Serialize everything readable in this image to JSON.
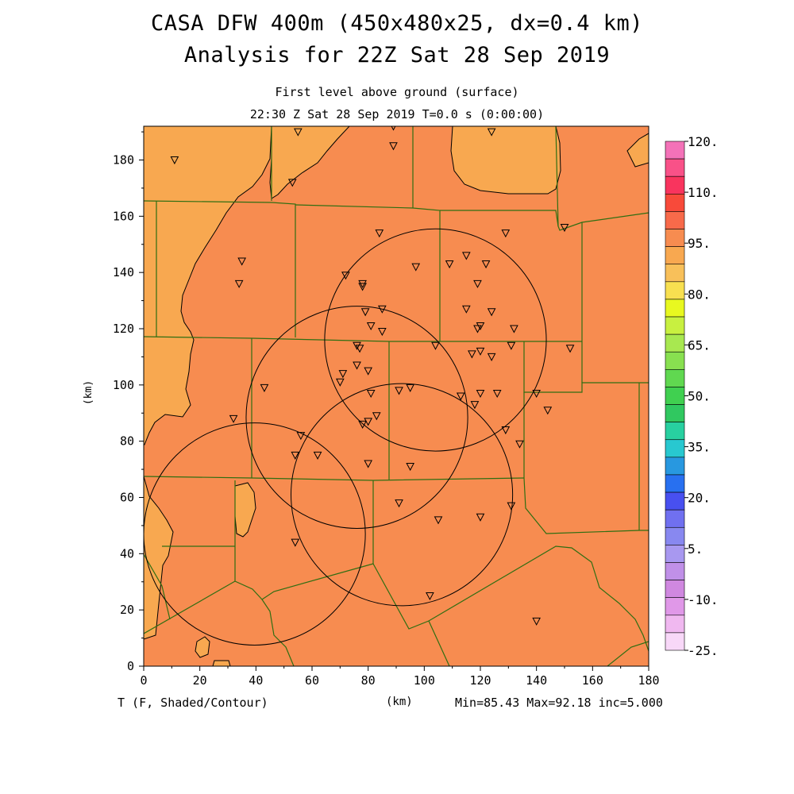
{
  "header": {
    "title_line1": "CASA DFW 400m (450x480x25, dx=0.4 km)",
    "title_line2": "Analysis for 22Z Sat 28 Sep 2019",
    "subtitle_line1": "First level above ground (surface)",
    "subtitle_line2": "22:30 Z Sat 28 Sep 2019   T=0.0 s (0:00:00)"
  },
  "footer": {
    "variable": "T (F, Shaded/Contour)",
    "x_unit": "(km)",
    "stats": "Min=85.43 Max=92.18 inc=5.000"
  },
  "axes": {
    "y_label": "(km)",
    "x_ticks": [
      "0",
      "20",
      "40",
      "60",
      "80",
      "100",
      "120",
      "140",
      "160",
      "180"
    ],
    "y_ticks": [
      "0",
      "20",
      "40",
      "60",
      "80",
      "100",
      "120",
      "140",
      "160",
      "180"
    ],
    "x_range_km": [
      0,
      180
    ],
    "y_range_km": [
      0,
      192
    ]
  },
  "colors": {
    "field_85_90": "#f78c50",
    "field_80_85": "#f8a850",
    "boundary": "#2f6e12"
  },
  "colorbar": {
    "labels": [
      "120.",
      "110.",
      "95.",
      "80.",
      "65.",
      "50.",
      "35.",
      "20.",
      "5.",
      "-10.",
      "-25."
    ],
    "colors": [
      "#f472b8",
      "#f95188",
      "#f9345e",
      "#f84a3a",
      "#f86a4a",
      "#f78c50",
      "#f8a850",
      "#f8c05a",
      "#f8e050",
      "#e8f820",
      "#c8f040",
      "#a8e850",
      "#88e050",
      "#60d850",
      "#40d050",
      "#30c860",
      "#28d0a0",
      "#28c8d0",
      "#2898e0",
      "#2870f0",
      "#4850f0",
      "#7070f0",
      "#8888f0",
      "#a898f0",
      "#c090e8",
      "#d088e0",
      "#e098e8",
      "#f0b8f0",
      "#f8d8f8"
    ]
  },
  "radars": [
    {
      "cx_km": 104,
      "cy_km": 116,
      "r_km": 39.5
    },
    {
      "cx_km": 76,
      "cy_km": 88.5,
      "r_km": 39.5
    },
    {
      "cx_km": 39.5,
      "cy_km": 47,
      "r_km": 39.5
    },
    {
      "cx_km": 92,
      "cy_km": 61,
      "r_km": 39.5
    }
  ],
  "stations_km": [
    [
      11,
      180
    ],
    [
      55,
      190
    ],
    [
      53,
      172
    ],
    [
      89,
      192
    ],
    [
      89,
      185
    ],
    [
      124,
      190
    ],
    [
      150,
      156
    ],
    [
      129,
      154
    ],
    [
      84,
      154
    ],
    [
      35,
      144
    ],
    [
      34,
      136
    ],
    [
      72,
      139
    ],
    [
      78,
      136
    ],
    [
      78,
      135
    ],
    [
      97,
      142
    ],
    [
      109,
      143
    ],
    [
      115,
      146
    ],
    [
      122,
      143
    ],
    [
      119,
      136
    ],
    [
      115,
      127
    ],
    [
      124,
      126
    ],
    [
      79,
      126
    ],
    [
      85,
      127
    ],
    [
      81,
      121
    ],
    [
      85,
      119
    ],
    [
      119,
      120
    ],
    [
      120,
      121
    ],
    [
      132,
      120
    ],
    [
      76,
      114
    ],
    [
      77,
      113
    ],
    [
      104,
      114
    ],
    [
      117,
      111
    ],
    [
      120,
      112
    ],
    [
      124,
      110
    ],
    [
      131,
      114
    ],
    [
      152,
      113
    ],
    [
      76,
      107
    ],
    [
      80,
      105
    ],
    [
      71,
      104
    ],
    [
      70,
      101
    ],
    [
      43,
      99
    ],
    [
      81,
      97
    ],
    [
      95,
      99
    ],
    [
      91,
      98
    ],
    [
      113,
      96
    ],
    [
      120,
      97
    ],
    [
      126,
      97
    ],
    [
      118,
      93
    ],
    [
      140,
      97
    ],
    [
      144,
      91
    ],
    [
      32,
      88
    ],
    [
      83,
      89
    ],
    [
      80,
      87
    ],
    [
      78,
      86
    ],
    [
      129,
      84
    ],
    [
      56,
      82
    ],
    [
      134,
      79
    ],
    [
      54,
      75
    ],
    [
      62,
      75
    ],
    [
      80,
      72
    ],
    [
      95,
      71
    ],
    [
      91,
      58
    ],
    [
      131,
      57
    ],
    [
      120,
      53
    ],
    [
      105,
      52
    ],
    [
      54,
      44
    ],
    [
      102,
      25
    ],
    [
      140,
      16
    ]
  ]
}
